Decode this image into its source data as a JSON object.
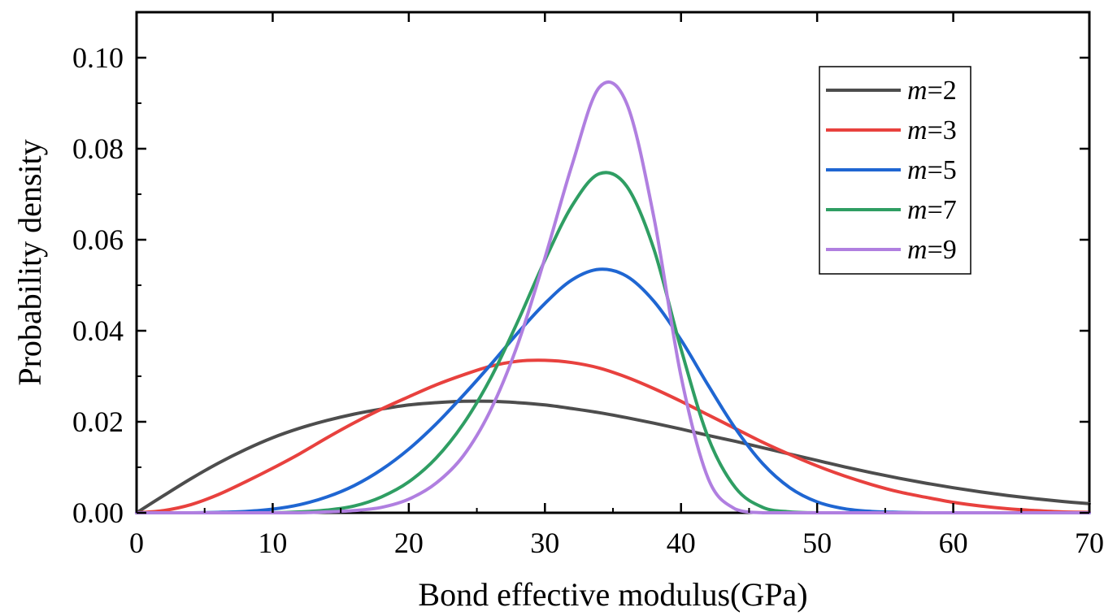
{
  "chart_data": {
    "type": "line",
    "title": "",
    "xlabel": "Bond effective modulus(GPa)",
    "ylabel": "Probability density",
    "xlim": [
      0,
      70
    ],
    "ylim": [
      0,
      0.11
    ],
    "xticks": [
      "0",
      "10",
      "20",
      "30",
      "40",
      "50",
      "60",
      "70"
    ],
    "xtick_values": [
      0,
      10,
      20,
      30,
      40,
      50,
      60,
      70
    ],
    "yticks": [
      "0.00",
      "0.02",
      "0.04",
      "0.06",
      "0.08",
      "0.10"
    ],
    "ytick_values": [
      0,
      0.02,
      0.04,
      0.06,
      0.08,
      0.1
    ],
    "grid": false,
    "legend_position": "top-right",
    "x": [
      0,
      2,
      4,
      6,
      8,
      10,
      12,
      14,
      16,
      18,
      20,
      22,
      24,
      26,
      28,
      30,
      32,
      34,
      36,
      38,
      40,
      42,
      44,
      46,
      48,
      50,
      52,
      54,
      56,
      58,
      60,
      62,
      64,
      66,
      68,
      70
    ],
    "series": [
      {
        "name": "m=2",
        "legend_prefix": "m",
        "legend_suffix": "=2",
        "color": "#4d4d4d",
        "values": [
          0.0,
          0.0038,
          0.0075,
          0.0109,
          0.0139,
          0.0165,
          0.0186,
          0.0203,
          0.0217,
          0.0228,
          0.0237,
          0.0242,
          0.0245,
          0.0245,
          0.0242,
          0.0237,
          0.0229,
          0.022,
          0.0209,
          0.0197,
          0.0184,
          0.017,
          0.0157,
          0.0143,
          0.0129,
          0.0115,
          0.0101,
          0.0088,
          0.0076,
          0.0065,
          0.0055,
          0.0046,
          0.0038,
          0.0031,
          0.0025,
          0.002
        ]
      },
      {
        "name": "m=3",
        "legend_prefix": "m",
        "legend_suffix": "=3",
        "color": "#e8413e",
        "values": [
          0.0,
          0.0005,
          0.0018,
          0.004,
          0.0068,
          0.0098,
          0.013,
          0.0165,
          0.0198,
          0.0228,
          0.0255,
          0.0281,
          0.0303,
          0.0322,
          0.0333,
          0.0335,
          0.033,
          0.0318,
          0.0298,
          0.0273,
          0.0245,
          0.0215,
          0.0185,
          0.0155,
          0.0128,
          0.0103,
          0.0081,
          0.0062,
          0.0046,
          0.0034,
          0.0023,
          0.0015,
          0.0009,
          0.0005,
          0.0002,
          0.0001
        ]
      },
      {
        "name": "m=5",
        "legend_prefix": "m",
        "legend_suffix": "=5",
        "color": "#1f66d2",
        "values": [
          0.0,
          0.0,
          0.0,
          0.0001,
          0.0003,
          0.0008,
          0.0018,
          0.0035,
          0.006,
          0.0095,
          0.014,
          0.0195,
          0.0258,
          0.0325,
          0.0395,
          0.046,
          0.0512,
          0.0535,
          0.052,
          0.0465,
          0.038,
          0.028,
          0.0185,
          0.0108,
          0.0055,
          0.0024,
          0.0009,
          0.0003,
          0.0001,
          0.0,
          0.0,
          0.0,
          0.0,
          0.0,
          0.0,
          0.0
        ]
      },
      {
        "name": "m=7",
        "legend_prefix": "m",
        "legend_suffix": "=7",
        "color": "#2f9e63",
        "values": [
          0.0,
          0.0,
          0.0,
          0.0,
          0.0,
          0.0,
          0.0002,
          0.0006,
          0.0015,
          0.0035,
          0.0068,
          0.012,
          0.0195,
          0.0295,
          0.042,
          0.0555,
          0.0675,
          0.0745,
          0.0718,
          0.058,
          0.036,
          0.0165,
          0.0055,
          0.0012,
          0.0002,
          0.0,
          0.0,
          0.0,
          0.0,
          0.0,
          0.0,
          0.0,
          0.0,
          0.0,
          0.0,
          0.0
        ]
      },
      {
        "name": "m=9",
        "legend_prefix": "m",
        "legend_suffix": "=9",
        "color": "#b07fe0",
        "values": [
          0.0,
          0.0,
          0.0,
          0.0,
          0.0,
          0.0,
          0.0,
          0.0002,
          0.0005,
          0.0012,
          0.003,
          0.0065,
          0.0125,
          0.0225,
          0.037,
          0.056,
          0.0765,
          0.0935,
          0.09,
          0.065,
          0.03,
          0.0075,
          0.0008,
          0.0,
          0.0,
          0.0,
          0.0,
          0.0,
          0.0,
          0.0,
          0.0,
          0.0,
          0.0,
          0.0,
          0.0,
          0.0
        ]
      }
    ]
  }
}
